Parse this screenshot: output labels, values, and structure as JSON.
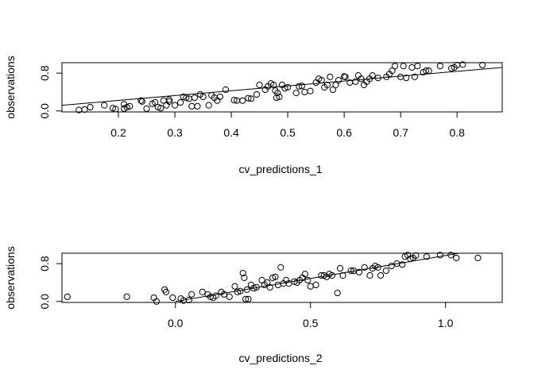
{
  "chart_data": [
    {
      "type": "scatter",
      "xlabel": "cv_predictions_1",
      "ylabel": "observations",
      "xlim": [
        0.1,
        0.88
      ],
      "ylim": [
        -0.02,
        1.02
      ],
      "xticks": [
        "0.2",
        "0.3",
        "0.4",
        "0.5",
        "0.6",
        "0.7",
        "0.8"
      ],
      "yticks": [
        "0.0",
        "0.8"
      ],
      "grid": false,
      "fit_line": {
        "x": [
          0.1,
          0.88
        ],
        "y": [
          0.12,
          0.92
        ]
      },
      "points": [
        [
          0.13,
          0.02
        ],
        [
          0.14,
          0.03
        ],
        [
          0.15,
          0.08
        ],
        [
          0.175,
          0.12
        ],
        [
          0.19,
          0.06
        ],
        [
          0.195,
          0.04
        ],
        [
          0.21,
          0.14
        ],
        [
          0.21,
          0.05
        ],
        [
          0.215,
          0.08
        ],
        [
          0.22,
          0.1
        ],
        [
          0.24,
          0.22
        ],
        [
          0.242,
          0.2
        ],
        [
          0.25,
          0.05
        ],
        [
          0.26,
          0.15
        ],
        [
          0.265,
          0.18
        ],
        [
          0.27,
          0.08
        ],
        [
          0.275,
          0.06
        ],
        [
          0.28,
          0.22
        ],
        [
          0.285,
          0.12
        ],
        [
          0.29,
          0.2
        ],
        [
          0.29,
          0.24
        ],
        [
          0.3,
          0.12
        ],
        [
          0.31,
          0.18
        ],
        [
          0.315,
          0.3
        ],
        [
          0.32,
          0.28
        ],
        [
          0.325,
          0.26
        ],
        [
          0.33,
          0.1
        ],
        [
          0.335,
          0.28
        ],
        [
          0.34,
          0.1
        ],
        [
          0.345,
          0.35
        ],
        [
          0.35,
          0.3
        ],
        [
          0.36,
          0.12
        ],
        [
          0.365,
          0.33
        ],
        [
          0.37,
          0.28
        ],
        [
          0.375,
          0.22
        ],
        [
          0.38,
          0.3
        ],
        [
          0.39,
          0.45
        ],
        [
          0.405,
          0.23
        ],
        [
          0.41,
          0.22
        ],
        [
          0.42,
          0.22
        ],
        [
          0.43,
          0.27
        ],
        [
          0.435,
          0.26
        ],
        [
          0.445,
          0.35
        ],
        [
          0.45,
          0.55
        ],
        [
          0.46,
          0.45
        ],
        [
          0.465,
          0.52
        ],
        [
          0.47,
          0.58
        ],
        [
          0.475,
          0.55
        ],
        [
          0.478,
          0.43
        ],
        [
          0.48,
          0.28
        ],
        [
          0.482,
          0.38
        ],
        [
          0.485,
          0.3
        ],
        [
          0.49,
          0.55
        ],
        [
          0.495,
          0.48
        ],
        [
          0.5,
          0.5
        ],
        [
          0.515,
          0.38
        ],
        [
          0.52,
          0.52
        ],
        [
          0.525,
          0.53
        ],
        [
          0.53,
          0.4
        ],
        [
          0.54,
          0.42
        ],
        [
          0.55,
          0.6
        ],
        [
          0.555,
          0.68
        ],
        [
          0.56,
          0.65
        ],
        [
          0.565,
          0.5
        ],
        [
          0.57,
          0.55
        ],
        [
          0.575,
          0.72
        ],
        [
          0.58,
          0.45
        ],
        [
          0.585,
          0.55
        ],
        [
          0.59,
          0.65
        ],
        [
          0.6,
          0.73
        ],
        [
          0.602,
          0.72
        ],
        [
          0.61,
          0.6
        ],
        [
          0.62,
          0.62
        ],
        [
          0.625,
          0.75
        ],
        [
          0.63,
          0.68
        ],
        [
          0.635,
          0.55
        ],
        [
          0.64,
          0.62
        ],
        [
          0.645,
          0.68
        ],
        [
          0.65,
          0.75
        ],
        [
          0.66,
          0.7
        ],
        [
          0.675,
          0.72
        ],
        [
          0.68,
          0.78
        ],
        [
          0.685,
          0.85
        ],
        [
          0.69,
          0.95
        ],
        [
          0.7,
          0.72
        ],
        [
          0.705,
          0.95
        ],
        [
          0.71,
          0.7
        ],
        [
          0.72,
          0.92
        ],
        [
          0.725,
          0.72
        ],
        [
          0.73,
          0.95
        ],
        [
          0.74,
          0.82
        ],
        [
          0.745,
          0.85
        ],
        [
          0.75,
          0.85
        ],
        [
          0.77,
          0.95
        ],
        [
          0.79,
          0.9
        ],
        [
          0.795,
          0.92
        ],
        [
          0.8,
          0.97
        ],
        [
          0.81,
          0.98
        ],
        [
          0.845,
          0.97
        ]
      ]
    },
    {
      "type": "scatter",
      "xlabel": "cv_predictions_2",
      "ylabel": "observations",
      "xlim": [
        -0.42,
        1.21
      ],
      "ylim": [
        -0.02,
        1.02
      ],
      "xticks": [
        "0.0",
        "0.5",
        "1.0"
      ],
      "yticks": [
        "0.0",
        "0.8"
      ],
      "grid": false,
      "fit_line": {
        "x": [
          0.0,
          1.05
        ],
        "y": [
          0.0,
          1.02
        ]
      },
      "points": [
        [
          -0.4,
          0.1
        ],
        [
          -0.18,
          0.1
        ],
        [
          -0.08,
          0.08
        ],
        [
          -0.07,
          0.0
        ],
        [
          -0.04,
          0.25
        ],
        [
          -0.035,
          0.2
        ],
        [
          -0.01,
          0.08
        ],
        [
          0.02,
          0.06
        ],
        [
          0.03,
          0.02
        ],
        [
          0.05,
          0.03
        ],
        [
          0.06,
          0.15
        ],
        [
          0.1,
          0.2
        ],
        [
          0.12,
          0.15
        ],
        [
          0.13,
          0.1
        ],
        [
          0.14,
          0.08
        ],
        [
          0.15,
          0.12
        ],
        [
          0.17,
          0.2
        ],
        [
          0.18,
          0.15
        ],
        [
          0.2,
          0.1
        ],
        [
          0.22,
          0.32
        ],
        [
          0.23,
          0.2
        ],
        [
          0.24,
          0.22
        ],
        [
          0.25,
          0.6
        ],
        [
          0.255,
          0.5
        ],
        [
          0.26,
          0.05
        ],
        [
          0.265,
          0.25
        ],
        [
          0.27,
          0.05
        ],
        [
          0.28,
          0.35
        ],
        [
          0.29,
          0.28
        ],
        [
          0.3,
          0.3
        ],
        [
          0.32,
          0.45
        ],
        [
          0.33,
          0.35
        ],
        [
          0.34,
          0.4
        ],
        [
          0.35,
          0.3
        ],
        [
          0.36,
          0.5
        ],
        [
          0.37,
          0.52
        ],
        [
          0.38,
          0.35
        ],
        [
          0.39,
          0.72
        ],
        [
          0.4,
          0.38
        ],
        [
          0.41,
          0.45
        ],
        [
          0.42,
          0.38
        ],
        [
          0.44,
          0.42
        ],
        [
          0.45,
          0.4
        ],
        [
          0.46,
          0.45
        ],
        [
          0.47,
          0.5
        ],
        [
          0.48,
          0.58
        ],
        [
          0.49,
          0.45
        ],
        [
          0.5,
          0.32
        ],
        [
          0.52,
          0.35
        ],
        [
          0.54,
          0.55
        ],
        [
          0.55,
          0.55
        ],
        [
          0.56,
          0.52
        ],
        [
          0.57,
          0.58
        ],
        [
          0.58,
          0.55
        ],
        [
          0.6,
          0.18
        ],
        [
          0.61,
          0.7
        ],
        [
          0.62,
          0.55
        ],
        [
          0.65,
          0.65
        ],
        [
          0.66,
          0.65
        ],
        [
          0.68,
          0.62
        ],
        [
          0.7,
          0.72
        ],
        [
          0.72,
          0.55
        ],
        [
          0.73,
          0.7
        ],
        [
          0.74,
          0.75
        ],
        [
          0.75,
          0.72
        ],
        [
          0.76,
          0.55
        ],
        [
          0.78,
          0.65
        ],
        [
          0.8,
          0.75
        ],
        [
          0.82,
          0.8
        ],
        [
          0.84,
          0.78
        ],
        [
          0.85,
          0.95
        ],
        [
          0.86,
          0.98
        ],
        [
          0.87,
          0.9
        ],
        [
          0.88,
          0.92
        ],
        [
          0.89,
          0.97
        ],
        [
          0.93,
          0.95
        ],
        [
          0.98,
          0.98
        ],
        [
          1.02,
          0.98
        ],
        [
          1.04,
          0.92
        ],
        [
          1.12,
          0.92
        ]
      ]
    }
  ]
}
